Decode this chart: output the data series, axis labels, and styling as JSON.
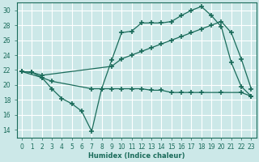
{
  "bg_color": "#cce8e8",
  "grid_color": "#ffffff",
  "line_color": "#1a6b5a",
  "xlabel": "Humidex (Indice chaleur)",
  "xlim": [
    -0.5,
    23.5
  ],
  "ylim": [
    13,
    31
  ],
  "yticks": [
    14,
    16,
    18,
    20,
    22,
    24,
    26,
    28,
    30
  ],
  "xticks": [
    0,
    1,
    2,
    3,
    4,
    5,
    6,
    7,
    8,
    9,
    10,
    11,
    12,
    13,
    14,
    15,
    16,
    17,
    18,
    19,
    20,
    21,
    22,
    23
  ],
  "series1_x": [
    0,
    1,
    2,
    3,
    4,
    5,
    6,
    7,
    8,
    9,
    10,
    11,
    12,
    13,
    14,
    15,
    16,
    17,
    18,
    19,
    20,
    21,
    22,
    23
  ],
  "series1_y": [
    21.8,
    21.7,
    21.0,
    19.5,
    18.2,
    17.5,
    16.5,
    13.8,
    19.5,
    23.3,
    27.0,
    27.2,
    28.3,
    28.3,
    28.3,
    28.5,
    29.3,
    30.0,
    30.5,
    29.3,
    27.8,
    23.0,
    19.8,
    18.5
  ],
  "series2_x": [
    0,
    2,
    3,
    7,
    8,
    9,
    10,
    11,
    12,
    13,
    14,
    15,
    16,
    17,
    18,
    20,
    22,
    23
  ],
  "series2_y": [
    21.8,
    21.0,
    20.5,
    19.5,
    19.5,
    19.5,
    19.5,
    19.5,
    19.5,
    19.3,
    19.3,
    19.0,
    19.0,
    19.0,
    19.0,
    19.0,
    19.0,
    18.5
  ],
  "series3_x": [
    0,
    1,
    2,
    9,
    10,
    11,
    12,
    13,
    14,
    15,
    16,
    17,
    18,
    19,
    20,
    21,
    22,
    23
  ],
  "series3_y": [
    21.8,
    21.7,
    21.3,
    22.5,
    23.5,
    24.0,
    24.5,
    25.0,
    25.5,
    26.0,
    26.5,
    27.0,
    27.5,
    28.0,
    28.5,
    27.0,
    23.5,
    19.5
  ]
}
